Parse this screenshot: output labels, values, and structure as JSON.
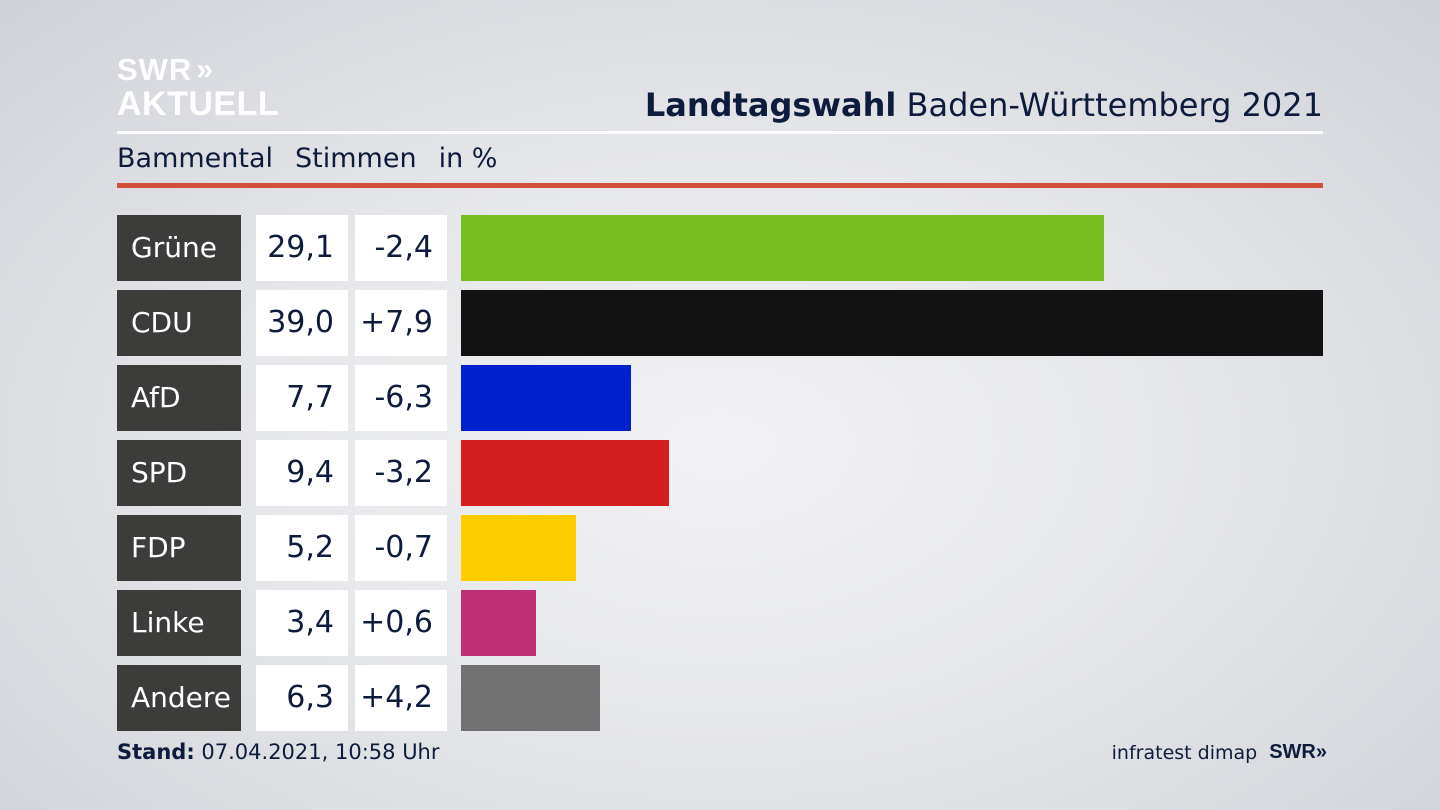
{
  "header": {
    "logo_line1": "SWR",
    "logo_chevrons": "»",
    "logo_line2": "AKTUELL",
    "title_bold": "Landtagswahl",
    "title_rest": "Baden-Württemberg 2021"
  },
  "subtitle": {
    "region": "Bammental",
    "measure": "Stimmen",
    "unit": "in %"
  },
  "chart_data": {
    "type": "bar",
    "orientation": "horizontal",
    "categories": [
      "Grüne",
      "CDU",
      "AfD",
      "SPD",
      "FDP",
      "Linke",
      "Andere"
    ],
    "values": [
      29.1,
      39.0,
      7.7,
      9.4,
      5.2,
      3.4,
      6.3
    ],
    "value_labels": [
      "29,1",
      "39,0",
      "7,7",
      "9,4",
      "5,2",
      "3,4",
      "6,3"
    ],
    "changes": [
      -2.4,
      7.9,
      -6.3,
      -3.2,
      -0.7,
      0.6,
      4.2
    ],
    "change_labels": [
      "-2,4",
      "+7,9",
      "-6,3",
      "-3,2",
      "-0,7",
      "+0,6",
      "+4,2"
    ],
    "colors": [
      "#78be1e",
      "#121212",
      "#0021cc",
      "#d41f20",
      "#ffcc00",
      "#be3075",
      "#727272"
    ],
    "xlim": [
      0,
      39.0
    ],
    "grid": false,
    "legend": "none"
  },
  "footer": {
    "stand_label": "Stand:",
    "stand_value": "07.04.2021, 10:58 Uhr",
    "source": "infratest dimap",
    "source_logo": "SWR",
    "source_logo_chevrons": "»"
  }
}
